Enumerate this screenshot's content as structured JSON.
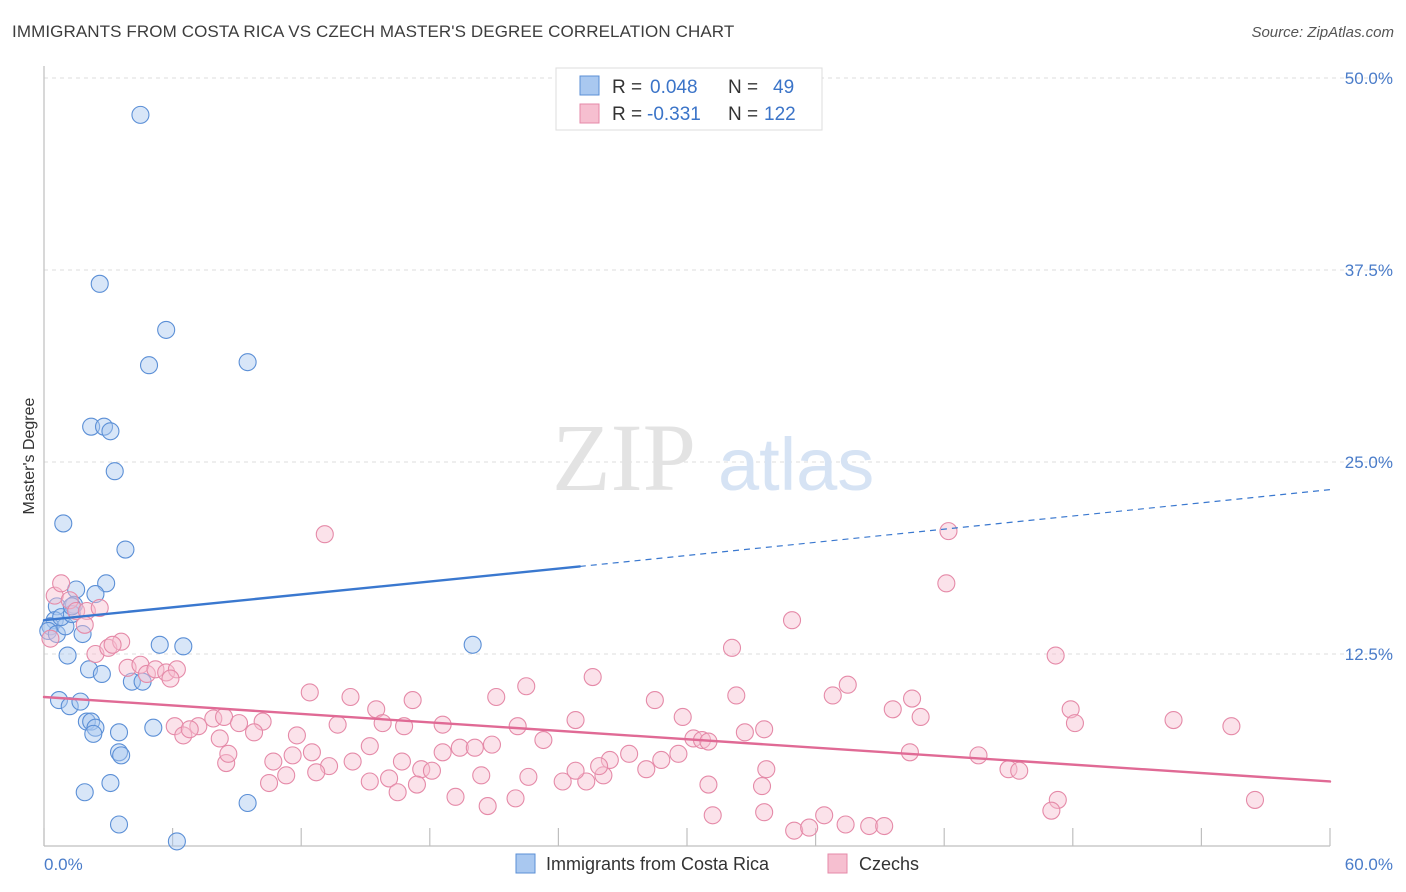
{
  "header": {
    "title": "IMMIGRANTS FROM COSTA RICA VS CZECH MASTER'S DEGREE CORRELATION CHART",
    "source": "Source: ZipAtlas.com"
  },
  "watermark": {
    "zip": "ZIP",
    "atlas": "atlas"
  },
  "stats": [
    {
      "r_label": "R =",
      "r_value": "0.048",
      "n_label": "N =",
      "n_value": "49",
      "color": "#a9c8f0",
      "stroke": "#5b8fd6"
    },
    {
      "r_label": "R =",
      "r_value": "-0.331",
      "n_label": "N =",
      "n_value": "122",
      "color": "#f6bfd0",
      "stroke": "#e58aa8"
    }
  ],
  "legend": [
    {
      "label": "Immigrants from Costa Rica",
      "color": "#a9c8f0",
      "stroke": "#5b8fd6"
    },
    {
      "label": "Czechs",
      "color": "#f6bfd0",
      "stroke": "#e58aa8"
    }
  ],
  "chart_data": {
    "type": "scatter",
    "ylabel": "Master's Degree",
    "xlim": [
      0,
      60
    ],
    "ylim": [
      0,
      50
    ],
    "y_ticks": [
      {
        "value": 12.5,
        "label": "12.5%"
      },
      {
        "value": 25.0,
        "label": "25.0%"
      },
      {
        "value": 37.5,
        "label": "37.5%"
      },
      {
        "value": 50.0,
        "label": "50.0%"
      }
    ],
    "x_tick_labels": [
      {
        "value": 0,
        "label": "0.0%"
      },
      {
        "value": 60,
        "label": "60.0%"
      }
    ],
    "grid": true,
    "series": [
      {
        "name": "Immigrants from Costa Rica",
        "color": "#a9c8f0",
        "stroke": "#5b8fd6",
        "line_color": "#3a78cf",
        "trend": {
          "x0": 0,
          "y0": 14.7,
          "x1": 25,
          "y1": 18.2,
          "dash_to_x": 60,
          "dash_to_y": 23.2
        },
        "points": [
          [
            4.5,
            47.6
          ],
          [
            2.6,
            36.6
          ],
          [
            5.7,
            33.6
          ],
          [
            4.9,
            31.3
          ],
          [
            9.5,
            31.5
          ],
          [
            2.2,
            27.3
          ],
          [
            2.8,
            27.3
          ],
          [
            3.1,
            27.0
          ],
          [
            3.3,
            24.4
          ],
          [
            0.9,
            21.0
          ],
          [
            3.8,
            19.3
          ],
          [
            2.9,
            17.1
          ],
          [
            2.4,
            16.4
          ],
          [
            1.5,
            16.7
          ],
          [
            1.4,
            15.7
          ],
          [
            0.6,
            15.6
          ],
          [
            0.5,
            14.7
          ],
          [
            0.3,
            14.3
          ],
          [
            0.2,
            14.0
          ],
          [
            0.6,
            13.8
          ],
          [
            1.0,
            14.3
          ],
          [
            0.8,
            14.9
          ],
          [
            1.3,
            15.1
          ],
          [
            1.8,
            13.8
          ],
          [
            1.1,
            12.4
          ],
          [
            5.4,
            13.1
          ],
          [
            6.5,
            13.0
          ],
          [
            20.0,
            13.1
          ],
          [
            2.1,
            11.5
          ],
          [
            2.7,
            11.2
          ],
          [
            4.1,
            10.7
          ],
          [
            4.6,
            10.7
          ],
          [
            0.7,
            9.5
          ],
          [
            1.2,
            9.1
          ],
          [
            1.7,
            9.4
          ],
          [
            2.0,
            8.1
          ],
          [
            2.2,
            8.1
          ],
          [
            2.4,
            7.7
          ],
          [
            2.3,
            7.3
          ],
          [
            3.5,
            7.4
          ],
          [
            5.1,
            7.7
          ],
          [
            3.5,
            6.1
          ],
          [
            3.6,
            5.9
          ],
          [
            3.1,
            4.1
          ],
          [
            1.9,
            3.5
          ],
          [
            9.5,
            2.8
          ],
          [
            3.5,
            1.4
          ],
          [
            6.2,
            0.3
          ],
          [
            1.3,
            15.6
          ]
        ]
      },
      {
        "name": "Czechs",
        "color": "#f6bfd0",
        "stroke": "#e58aa8",
        "line_color": "#e06a95",
        "trend": {
          "x0": 0,
          "y0": 9.7,
          "x1": 60,
          "y1": 4.2
        },
        "points": [
          [
            0.3,
            13.5
          ],
          [
            0.5,
            16.3
          ],
          [
            0.8,
            17.1
          ],
          [
            1.2,
            16.0
          ],
          [
            1.5,
            15.3
          ],
          [
            2.0,
            15.3
          ],
          [
            2.6,
            15.5
          ],
          [
            1.9,
            14.4
          ],
          [
            2.4,
            12.5
          ],
          [
            3.0,
            12.9
          ],
          [
            3.6,
            13.3
          ],
          [
            3.2,
            13.1
          ],
          [
            3.9,
            11.6
          ],
          [
            4.5,
            11.8
          ],
          [
            4.8,
            11.2
          ],
          [
            5.2,
            11.5
          ],
          [
            5.7,
            11.3
          ],
          [
            6.2,
            11.5
          ],
          [
            5.9,
            10.9
          ],
          [
            13.1,
            20.3
          ],
          [
            42.2,
            20.5
          ],
          [
            42.1,
            17.1
          ],
          [
            34.9,
            14.7
          ],
          [
            32.1,
            12.9
          ],
          [
            47.2,
            12.4
          ],
          [
            12.4,
            10.0
          ],
          [
            14.3,
            9.7
          ],
          [
            15.5,
            8.9
          ],
          [
            17.2,
            9.5
          ],
          [
            21.1,
            9.7
          ],
          [
            22.5,
            10.4
          ],
          [
            25.6,
            11.0
          ],
          [
            28.5,
            9.5
          ],
          [
            32.3,
            9.8
          ],
          [
            36.8,
            9.8
          ],
          [
            37.5,
            10.5
          ],
          [
            39.6,
            8.9
          ],
          [
            40.5,
            9.6
          ],
          [
            40.9,
            8.4
          ],
          [
            47.9,
            8.9
          ],
          [
            48.1,
            8.0
          ],
          [
            52.7,
            8.2
          ],
          [
            55.4,
            7.8
          ],
          [
            6.1,
            7.8
          ],
          [
            7.2,
            7.8
          ],
          [
            7.9,
            8.3
          ],
          [
            8.4,
            8.4
          ],
          [
            9.1,
            8.0
          ],
          [
            10.2,
            8.1
          ],
          [
            11.8,
            7.2
          ],
          [
            13.7,
            7.9
          ],
          [
            15.8,
            8.0
          ],
          [
            16.8,
            7.8
          ],
          [
            18.6,
            7.9
          ],
          [
            22.1,
            7.8
          ],
          [
            24.8,
            8.2
          ],
          [
            29.8,
            8.4
          ],
          [
            32.7,
            7.4
          ],
          [
            33.6,
            7.6
          ],
          [
            30.3,
            7.0
          ],
          [
            6.5,
            7.2
          ],
          [
            6.8,
            7.6
          ],
          [
            8.2,
            7.0
          ],
          [
            9.8,
            7.4
          ],
          [
            11.6,
            5.9
          ],
          [
            12.5,
            6.1
          ],
          [
            13.3,
            5.2
          ],
          [
            14.4,
            5.5
          ],
          [
            15.2,
            6.5
          ],
          [
            16.7,
            5.5
          ],
          [
            17.6,
            5.0
          ],
          [
            18.6,
            6.1
          ],
          [
            19.4,
            6.4
          ],
          [
            20.1,
            6.4
          ],
          [
            20.9,
            6.6
          ],
          [
            23.3,
            6.9
          ],
          [
            26.4,
            5.6
          ],
          [
            27.3,
            6.0
          ],
          [
            28.1,
            5.0
          ],
          [
            28.8,
            5.6
          ],
          [
            30.7,
            6.9
          ],
          [
            31.0,
            6.8
          ],
          [
            33.7,
            5.0
          ],
          [
            40.4,
            6.1
          ],
          [
            43.6,
            5.9
          ],
          [
            45.0,
            5.0
          ],
          [
            45.5,
            4.9
          ],
          [
            8.5,
            5.4
          ],
          [
            8.6,
            6.0
          ],
          [
            10.7,
            5.5
          ],
          [
            10.5,
            4.1
          ],
          [
            11.3,
            4.6
          ],
          [
            12.7,
            4.8
          ],
          [
            15.2,
            4.2
          ],
          [
            16.1,
            4.4
          ],
          [
            16.5,
            3.5
          ],
          [
            17.4,
            4.0
          ],
          [
            18.1,
            4.9
          ],
          [
            19.2,
            3.2
          ],
          [
            20.4,
            4.6
          ],
          [
            20.7,
            2.6
          ],
          [
            22.0,
            3.1
          ],
          [
            22.6,
            4.5
          ],
          [
            24.2,
            4.2
          ],
          [
            25.3,
            4.2
          ],
          [
            26.1,
            4.6
          ],
          [
            31.0,
            4.0
          ],
          [
            33.5,
            3.9
          ],
          [
            31.2,
            2.0
          ],
          [
            35.0,
            1.0
          ],
          [
            35.7,
            1.2
          ],
          [
            36.4,
            2.0
          ],
          [
            37.4,
            1.4
          ],
          [
            38.5,
            1.3
          ],
          [
            39.2,
            1.3
          ],
          [
            47.3,
            3.0
          ],
          [
            47.0,
            2.3
          ],
          [
            56.5,
            3.0
          ],
          [
            33.6,
            2.2
          ],
          [
            25.9,
            5.2
          ],
          [
            29.6,
            6.0
          ],
          [
            24.8,
            4.9
          ]
        ]
      }
    ]
  }
}
